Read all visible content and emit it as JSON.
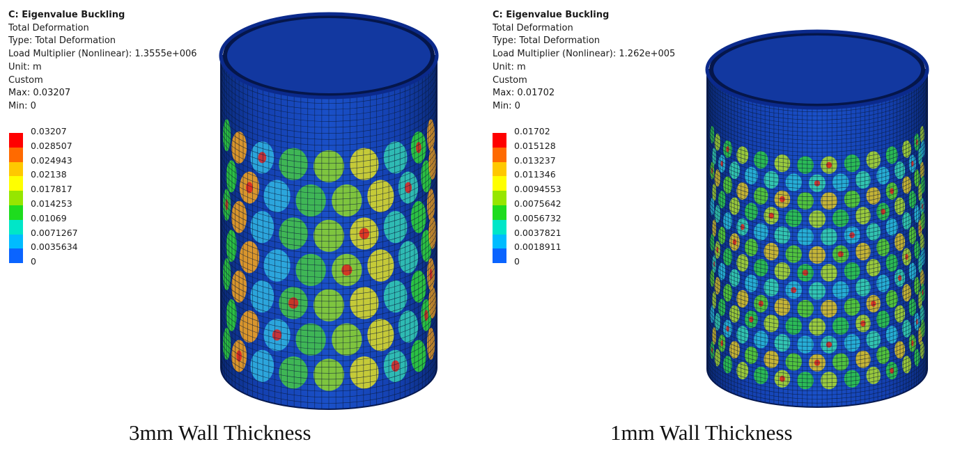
{
  "panels": [
    {
      "title": "C: Eigenvalue Buckling",
      "result": "Total Deformation",
      "type_line": "Type: Total Deformation",
      "load_line": "Load Multiplier (Nonlinear): 1.3555e+006",
      "unit_line": "Unit: m",
      "mode_line": "Custom",
      "max_line": "Max: 0.03207",
      "min_line": "Min: 0",
      "legend_values": [
        "0.03207",
        "0.028507",
        "0.024943",
        "0.02138",
        "0.017817",
        "0.014253",
        "0.01069",
        "0.0071267",
        "0.0035634",
        "0"
      ],
      "caption": "3mm Wall Thickness",
      "model_icon": "buckled-cylinder-3mm"
    },
    {
      "title": "C: Eigenvalue Buckling",
      "result": "Total Deformation",
      "type_line": "Type: Total Deformation",
      "load_line": "Load Multiplier (Nonlinear): 1.262e+005",
      "unit_line": "Unit: m",
      "mode_line": "Custom",
      "max_line": "Max: 0.01702",
      "min_line": "Min: 0",
      "legend_values": [
        "0.01702",
        "0.015128",
        "0.013237",
        "0.011346",
        "0.0094553",
        "0.0075642",
        "0.0056732",
        "0.0037821",
        "0.0018911",
        "0"
      ],
      "caption": "1mm Wall Thickness",
      "model_icon": "buckled-cylinder-1mm"
    }
  ],
  "legend_colors": [
    "#ff0000",
    "#ff6a00",
    "#ffc800",
    "#ffff00",
    "#96e600",
    "#1edc1e",
    "#00e6c8",
    "#00bcff",
    "#0a64ff",
    "#0000e6"
  ]
}
